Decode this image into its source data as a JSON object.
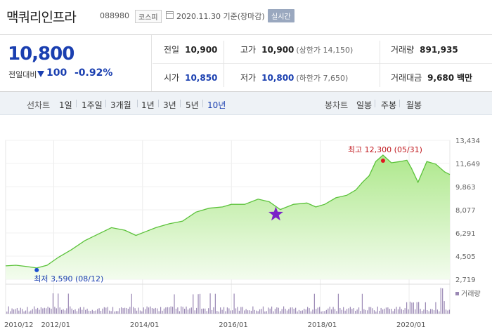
{
  "header": {
    "name": "맥쿼리인프라",
    "code": "088980",
    "market": "코스피",
    "date": "2020.11.30 기준(장마감)",
    "realtime": "실시간"
  },
  "summary": {
    "price": "10,800",
    "change_label": "전일대비",
    "change": "100",
    "change_rate": "-0.92%",
    "prev_close_label": "전일",
    "prev_close": "10,900",
    "high_label": "고가",
    "high": "10,900",
    "upper_limit": "(상한가 14,150)",
    "volume_label": "거래량",
    "volume": "891,935",
    "open_label": "시가",
    "open": "10,850",
    "low_label": "저가",
    "low": "10,800",
    "lower_limit": "(하한가 7,650)",
    "amount_label": "거래대금",
    "amount": "9,680",
    "amount_unit": "백만"
  },
  "periods": {
    "line_title": "선차트",
    "line_items": [
      "1일",
      "1주일",
      "3개월",
      "1년",
      "3년",
      "5년",
      "10년"
    ],
    "active": "10년",
    "candle_title": "봉차트",
    "candle_items": [
      "일봉",
      "주봉",
      "월봉"
    ]
  },
  "colors": {
    "accent": "#1a3fb0",
    "high_marker": "#e0171f",
    "low_marker": "#1a4fd0",
    "line": "#5bc23a",
    "volume": "#9a88b4"
  },
  "chart_data": {
    "type": "area",
    "y_ticks": [
      "13,434",
      "11,649",
      "9,863",
      "8,077",
      "6,291",
      "4,505",
      "2,719"
    ],
    "ylim": [
      2719,
      13434
    ],
    "x_ticks": [
      "2010/12",
      "2012/01",
      "2014/01",
      "2016/01",
      "2018/01",
      "2020/01"
    ],
    "x_tick_years": [
      2010.917,
      2012.0,
      2014.0,
      2016.0,
      2018.0,
      2020.0
    ],
    "xlim": [
      2010.917,
      2020.917
    ],
    "series": [
      {
        "x": [
          2010.917,
          2011.15,
          2011.4,
          2011.617,
          2011.85,
          2012.1,
          2012.4,
          2012.7,
          2013.0,
          2013.3,
          2013.6,
          2013.85,
          2014.0,
          2014.3,
          2014.6,
          2014.9,
          2015.2,
          2015.5,
          2015.8,
          2016.0,
          2016.3,
          2016.6,
          2016.85,
          2017.1,
          2017.4,
          2017.7,
          2017.9,
          2018.1,
          2018.35,
          2018.6,
          2018.8,
          2018.95,
          2019.1,
          2019.25,
          2019.413,
          2019.6,
          2019.8,
          2019.95,
          2020.05,
          2020.2,
          2020.4,
          2020.6,
          2020.8,
          2020.917
        ],
        "y": [
          3750,
          3800,
          3700,
          3590,
          3800,
          4400,
          5000,
          5700,
          6200,
          6700,
          6500,
          6100,
          6300,
          6700,
          7000,
          7200,
          7900,
          8200,
          8300,
          8500,
          8500,
          8900,
          8700,
          8100,
          8500,
          8600,
          8300,
          8500,
          9000,
          9200,
          9600,
          10200,
          10700,
          11800,
          12300,
          11700,
          11800,
          11900,
          11300,
          10200,
          11800,
          11600,
          11000,
          10800
        ]
      }
    ],
    "high_annotation": {
      "label": "최고 12,300 (05/31)",
      "x": 2019.413,
      "y": 12300
    },
    "low_annotation": {
      "label": "최저 3,590 (08/12)",
      "x": 2011.617,
      "y": 3590
    },
    "star_marker": {
      "x": 2017.0,
      "y": 8000
    },
    "volume_label": "거래량"
  }
}
